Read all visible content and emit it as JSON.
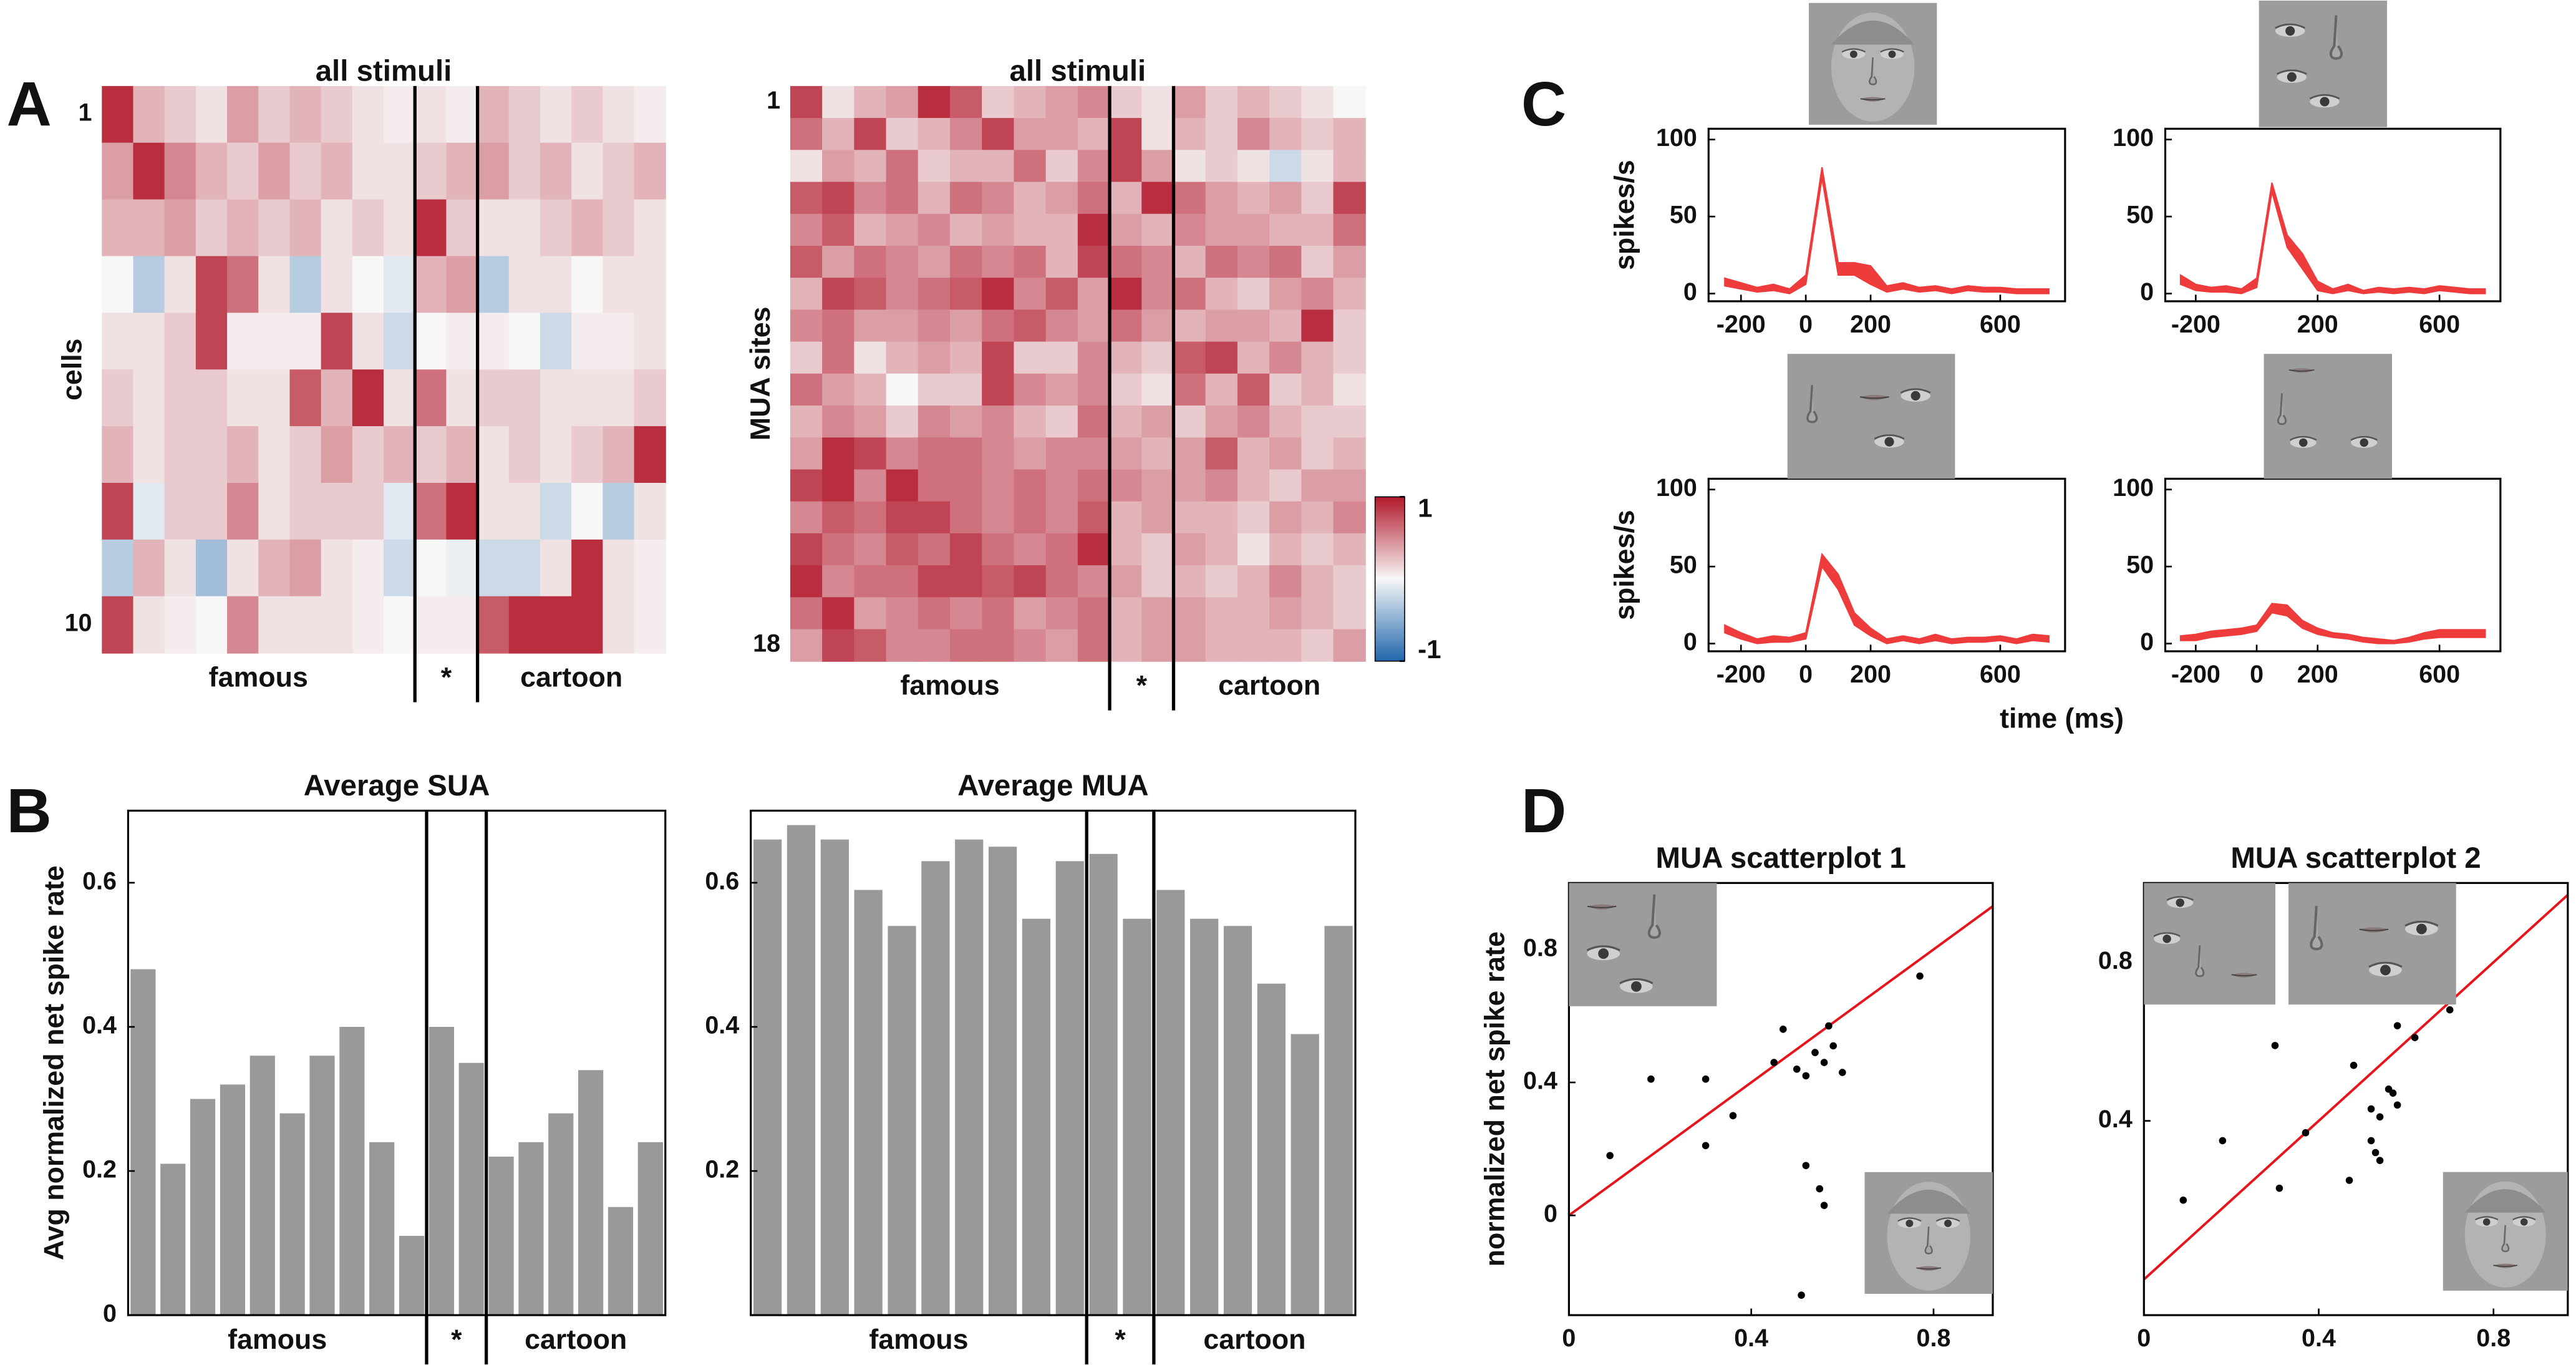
{
  "panel_labels": [
    "A",
    "B",
    "C",
    "D"
  ],
  "shared_labels": {
    "time_axis": "time (ms)"
  },
  "chart_data": [
    {
      "type": "heatmap",
      "title": "all stimuli",
      "ylabel": "cells",
      "yticks": [
        1,
        10
      ],
      "groups": [
        {
          "label": "famous",
          "count": 10
        },
        {
          "label": "*",
          "count": 2
        },
        {
          "label": "cartoon",
          "count": 6
        }
      ],
      "clim": [
        -1,
        1
      ],
      "colormap": [
        "#2166ac",
        "#f7f7f7",
        "#b2182b"
      ],
      "values": [
        [
          0.9,
          0.3,
          0.2,
          0.1,
          0.4,
          0.2,
          0.3,
          0.2,
          0.1,
          0.05,
          0.1,
          0.05,
          0.3,
          0.2,
          0.1,
          0.2,
          0.1,
          0.05
        ],
        [
          0.4,
          0.9,
          0.5,
          0.3,
          0.2,
          0.4,
          0.2,
          0.3,
          0.1,
          0.1,
          0.2,
          0.3,
          0.4,
          0.2,
          0.3,
          0.1,
          0.2,
          0.3
        ],
        [
          0.3,
          0.3,
          0.4,
          0.2,
          0.3,
          0.2,
          0.3,
          0.1,
          0.2,
          0.1,
          0.9,
          0.2,
          0.1,
          0.1,
          0.2,
          0.3,
          0.2,
          0.1
        ],
        [
          0.0,
          -0.3,
          0.1,
          0.8,
          0.6,
          0.1,
          -0.3,
          0.1,
          0.0,
          -0.1,
          0.3,
          0.4,
          -0.3,
          0.1,
          0.1,
          0.0,
          0.1,
          0.1
        ],
        [
          0.1,
          0.1,
          0.2,
          0.8,
          0.05,
          0.05,
          0.05,
          0.8,
          0.1,
          -0.2,
          0.0,
          0.05,
          0.05,
          0.0,
          -0.2,
          0.05,
          0.05,
          0.1
        ],
        [
          0.2,
          0.1,
          0.2,
          0.2,
          0.1,
          0.1,
          0.7,
          0.3,
          0.9,
          0.1,
          0.6,
          0.1,
          0.2,
          0.2,
          0.1,
          0.1,
          0.1,
          0.2
        ],
        [
          0.3,
          0.1,
          0.2,
          0.2,
          0.3,
          0.1,
          0.2,
          0.4,
          0.2,
          0.3,
          0.2,
          0.3,
          0.1,
          0.2,
          0.1,
          0.2,
          0.3,
          0.9
        ],
        [
          0.8,
          -0.1,
          0.2,
          0.2,
          0.5,
          0.1,
          0.2,
          0.2,
          0.2,
          -0.1,
          0.6,
          0.9,
          0.1,
          0.1,
          -0.2,
          0.0,
          -0.3,
          0.1
        ],
        [
          -0.3,
          0.3,
          0.1,
          -0.4,
          0.1,
          0.3,
          0.4,
          0.1,
          0.05,
          -0.2,
          0.0,
          -0.05,
          -0.2,
          -0.2,
          0.1,
          0.9,
          0.1,
          0.05
        ],
        [
          0.8,
          0.1,
          0.05,
          0.0,
          0.5,
          0.1,
          0.1,
          0.1,
          0.05,
          0.0,
          0.05,
          0.05,
          0.7,
          0.9,
          0.9,
          0.9,
          0.1,
          0.05
        ]
      ]
    },
    {
      "type": "heatmap",
      "title": "all stimuli",
      "ylabel": "MUA sites",
      "yticks": [
        1,
        18
      ],
      "groups": [
        {
          "label": "famous",
          "count": 10
        },
        {
          "label": "*",
          "count": 2
        },
        {
          "label": "cartoon",
          "count": 6
        }
      ],
      "clim": [
        -1,
        1
      ],
      "colormap": [
        "#2166ac",
        "#f7f7f7",
        "#b2182b"
      ],
      "colorbar": true,
      "cticks": [
        1,
        -1
      ],
      "values": [
        [
          0.8,
          0.1,
          0.3,
          0.4,
          0.9,
          0.7,
          0.2,
          0.3,
          0.4,
          0.5,
          0.2,
          0.1,
          0.4,
          0.2,
          0.3,
          0.2,
          0.1,
          0.0
        ],
        [
          0.6,
          0.3,
          0.8,
          0.2,
          0.3,
          0.5,
          0.8,
          0.4,
          0.4,
          0.3,
          0.8,
          0.1,
          0.3,
          0.2,
          0.5,
          0.3,
          0.2,
          0.3
        ],
        [
          0.1,
          0.4,
          0.3,
          0.6,
          0.2,
          0.3,
          0.3,
          0.6,
          0.2,
          0.5,
          0.8,
          0.4,
          0.1,
          0.2,
          0.1,
          -0.2,
          0.1,
          0.3
        ],
        [
          0.7,
          0.8,
          0.5,
          0.6,
          0.3,
          0.6,
          0.5,
          0.3,
          0.4,
          0.6,
          0.3,
          0.9,
          0.6,
          0.4,
          0.3,
          0.4,
          0.2,
          0.8
        ],
        [
          0.5,
          0.7,
          0.3,
          0.4,
          0.5,
          0.3,
          0.4,
          0.3,
          0.3,
          0.9,
          0.4,
          0.3,
          0.5,
          0.4,
          0.4,
          0.3,
          0.3,
          0.6
        ],
        [
          0.7,
          0.4,
          0.6,
          0.5,
          0.4,
          0.6,
          0.5,
          0.6,
          0.3,
          0.8,
          0.6,
          0.5,
          0.3,
          0.6,
          0.5,
          0.6,
          0.2,
          0.4
        ],
        [
          0.3,
          0.8,
          0.7,
          0.5,
          0.6,
          0.7,
          0.9,
          0.5,
          0.7,
          0.4,
          0.9,
          0.5,
          0.6,
          0.3,
          0.2,
          0.4,
          0.5,
          0.3
        ],
        [
          0.5,
          0.6,
          0.4,
          0.4,
          0.5,
          0.4,
          0.6,
          0.7,
          0.5,
          0.4,
          0.6,
          0.4,
          0.3,
          0.4,
          0.4,
          0.3,
          0.9,
          0.2
        ],
        [
          0.2,
          0.6,
          0.1,
          0.3,
          0.4,
          0.3,
          0.8,
          0.2,
          0.2,
          0.5,
          0.3,
          0.2,
          0.7,
          0.8,
          0.3,
          0.5,
          0.3,
          0.2
        ],
        [
          0.6,
          0.4,
          0.3,
          0.0,
          0.2,
          0.2,
          0.8,
          0.5,
          0.4,
          0.5,
          0.2,
          0.1,
          0.6,
          0.3,
          0.7,
          0.2,
          0.3,
          0.1
        ],
        [
          0.3,
          0.5,
          0.4,
          0.2,
          0.5,
          0.4,
          0.5,
          0.3,
          0.2,
          0.6,
          0.3,
          0.4,
          0.2,
          0.4,
          0.5,
          0.3,
          0.2,
          0.2
        ],
        [
          0.4,
          0.9,
          0.8,
          0.5,
          0.6,
          0.6,
          0.5,
          0.4,
          0.5,
          0.5,
          0.4,
          0.3,
          0.4,
          0.7,
          0.3,
          0.4,
          0.2,
          0.3
        ],
        [
          0.8,
          0.9,
          0.5,
          0.9,
          0.6,
          0.6,
          0.5,
          0.6,
          0.5,
          0.6,
          0.5,
          0.4,
          0.4,
          0.5,
          0.3,
          0.2,
          0.4,
          0.4
        ],
        [
          0.5,
          0.7,
          0.6,
          0.8,
          0.8,
          0.6,
          0.5,
          0.6,
          0.5,
          0.7,
          0.3,
          0.4,
          0.3,
          0.3,
          0.2,
          0.4,
          0.3,
          0.5
        ],
        [
          0.8,
          0.6,
          0.5,
          0.7,
          0.6,
          0.8,
          0.6,
          0.5,
          0.6,
          0.9,
          0.3,
          0.2,
          0.4,
          0.3,
          0.1,
          0.3,
          0.2,
          0.3
        ],
        [
          0.9,
          0.5,
          0.6,
          0.6,
          0.8,
          0.8,
          0.7,
          0.8,
          0.6,
          0.5,
          0.4,
          0.2,
          0.3,
          0.2,
          0.3,
          0.5,
          0.3,
          0.2
        ],
        [
          0.6,
          0.9,
          0.4,
          0.5,
          0.6,
          0.5,
          0.6,
          0.4,
          0.5,
          0.6,
          0.3,
          0.4,
          0.4,
          0.3,
          0.3,
          0.4,
          0.3,
          0.2
        ],
        [
          0.4,
          0.8,
          0.7,
          0.5,
          0.5,
          0.6,
          0.6,
          0.5,
          0.4,
          0.6,
          0.3,
          0.4,
          0.4,
          0.3,
          0.3,
          0.3,
          0.2,
          0.4
        ]
      ]
    },
    {
      "type": "bar",
      "title": "Average SUA",
      "ylabel": "Avg normalized net spike rate",
      "color": "#999999",
      "ylim": [
        0,
        0.7
      ],
      "yticks": [
        0,
        0.2,
        0.4,
        0.6
      ],
      "groups": [
        {
          "label": "famous",
          "count": 10
        },
        {
          "label": "*",
          "count": 2
        },
        {
          "label": "cartoon",
          "count": 6
        }
      ],
      "values": [
        0.48,
        0.21,
        0.3,
        0.32,
        0.36,
        0.28,
        0.36,
        0.4,
        0.24,
        0.11,
        0.4,
        0.35,
        0.22,
        0.24,
        0.28,
        0.34,
        0.15,
        0.24
      ]
    },
    {
      "type": "bar",
      "title": "Average MUA",
      "color": "#999999",
      "ylim": [
        0,
        0.7
      ],
      "yticks": [
        0.2,
        0.4,
        0.6
      ],
      "groups": [
        {
          "label": "famous",
          "count": 10
        },
        {
          "label": "*",
          "count": 2
        },
        {
          "label": "cartoon",
          "count": 6
        }
      ],
      "values": [
        0.66,
        0.68,
        0.66,
        0.59,
        0.54,
        0.63,
        0.66,
        0.65,
        0.55,
        0.63,
        0.64,
        0.55,
        0.59,
        0.55,
        0.54,
        0.46,
        0.39,
        0.54
      ]
    },
    {
      "type": "band",
      "ylabel": "spikes/s",
      "color": "#ee3b3b",
      "xlim": [
        -300,
        800
      ],
      "ylim": [
        -5,
        107
      ],
      "xticks": [
        -200,
        0,
        200,
        600
      ],
      "yticks": [
        0,
        50,
        100
      ],
      "x": [
        -250,
        -200,
        -150,
        -100,
        -50,
        0,
        50,
        100,
        150,
        200,
        250,
        300,
        350,
        400,
        450,
        500,
        550,
        600,
        650,
        700,
        750
      ],
      "upper": [
        10,
        7,
        4,
        6,
        3,
        12,
        82,
        20,
        20,
        18,
        5,
        7,
        4,
        5,
        3,
        5,
        4,
        4,
        3,
        3,
        3
      ],
      "lower": [
        5,
        3,
        1,
        2,
        0,
        6,
        75,
        12,
        12,
        6,
        1,
        3,
        1,
        2,
        0,
        2,
        1,
        1,
        0,
        0,
        0
      ]
    },
    {
      "type": "band",
      "color": "#ee3b3b",
      "xlim": [
        -300,
        800
      ],
      "ylim": [
        -5,
        107
      ],
      "xticks": [
        -200,
        200,
        600
      ],
      "yticks": [
        0,
        50,
        100
      ],
      "x": [
        -250,
        -200,
        -150,
        -100,
        -50,
        0,
        50,
        100,
        150,
        200,
        250,
        300,
        350,
        400,
        450,
        500,
        550,
        600,
        650,
        700,
        750
      ],
      "upper": [
        12,
        6,
        4,
        5,
        3,
        10,
        72,
        38,
        26,
        8,
        3,
        6,
        2,
        4,
        3,
        4,
        3,
        5,
        4,
        3,
        3
      ],
      "lower": [
        6,
        2,
        1,
        1,
        0,
        4,
        66,
        30,
        16,
        2,
        0,
        2,
        0,
        1,
        0,
        1,
        0,
        2,
        1,
        0,
        0
      ]
    },
    {
      "type": "band",
      "ylabel": "spikes/s",
      "color": "#ee3b3b",
      "xlim": [
        -300,
        800
      ],
      "ylim": [
        -5,
        107
      ],
      "xticks": [
        -200,
        0,
        200,
        600
      ],
      "yticks": [
        0,
        50,
        100
      ],
      "x": [
        -250,
        -200,
        -150,
        -100,
        -50,
        0,
        50,
        100,
        150,
        200,
        250,
        300,
        350,
        400,
        450,
        500,
        550,
        600,
        650,
        700,
        750
      ],
      "upper": [
        12,
        7,
        3,
        5,
        4,
        7,
        58,
        45,
        20,
        10,
        3,
        5,
        3,
        6,
        3,
        4,
        4,
        5,
        3,
        6,
        5
      ],
      "lower": [
        7,
        3,
        0,
        1,
        1,
        3,
        50,
        35,
        12,
        5,
        0,
        2,
        0,
        2,
        0,
        1,
        1,
        2,
        0,
        2,
        1
      ]
    },
    {
      "type": "band",
      "color": "#ee3b3b",
      "xlim": [
        -300,
        800
      ],
      "ylim": [
        -5,
        107
      ],
      "xticks": [
        -200,
        0,
        200,
        600
      ],
      "yticks": [
        0,
        50,
        100
      ],
      "x": [
        -250,
        -200,
        -150,
        -100,
        -50,
        0,
        50,
        100,
        150,
        200,
        250,
        300,
        350,
        400,
        450,
        500,
        550,
        600,
        650,
        700,
        750
      ],
      "upper": [
        5,
        6,
        8,
        9,
        10,
        12,
        26,
        25,
        15,
        10,
        7,
        6,
        4,
        3,
        2,
        4,
        7,
        9,
        9,
        9,
        9
      ],
      "lower": [
        2,
        2,
        4,
        5,
        6,
        8,
        20,
        18,
        10,
        6,
        4,
        3,
        1,
        0,
        0,
        1,
        3,
        4,
        4,
        4,
        4
      ]
    },
    {
      "type": "scatter",
      "title": "MUA scatterplot 1",
      "ylabel": "normalized net spike rate",
      "color": "#000000",
      "diagonal": true,
      "diagonal_color": "#e8141c",
      "xlim": [
        0,
        0.93
      ],
      "ylim": [
        -0.3,
        1.0
      ],
      "xticks": [
        0,
        0.4,
        0.8
      ],
      "yticks": [
        0,
        0.4,
        0.8
      ],
      "x": [
        0.09,
        0.18,
        0.3,
        0.3,
        0.36,
        0.45,
        0.47,
        0.5,
        0.52,
        0.54,
        0.56,
        0.57,
        0.58,
        0.6,
        0.52,
        0.56,
        0.55,
        0.51,
        0.77
      ],
      "y": [
        0.18,
        0.41,
        0.41,
        0.21,
        0.3,
        0.46,
        0.56,
        0.44,
        0.42,
        0.49,
        0.46,
        0.57,
        0.51,
        0.43,
        0.15,
        0.03,
        0.08,
        -0.24,
        0.72
      ]
    },
    {
      "type": "scatter",
      "title": "MUA scatterplot 2",
      "color": "#000000",
      "diagonal": true,
      "diagonal_color": "#e8141c",
      "xlim": [
        0,
        0.97
      ],
      "ylim": [
        -0.09,
        1.0
      ],
      "xticks": [
        0,
        0.4,
        0.8
      ],
      "yticks": [
        0.4,
        0.8
      ],
      "x": [
        0.09,
        0.18,
        0.3,
        0.31,
        0.37,
        0.47,
        0.48,
        0.52,
        0.52,
        0.53,
        0.54,
        0.54,
        0.56,
        0.57,
        0.58,
        0.58,
        0.62,
        0.7
      ],
      "y": [
        0.2,
        0.35,
        0.59,
        0.23,
        0.37,
        0.25,
        0.54,
        0.43,
        0.35,
        0.32,
        0.41,
        0.3,
        0.48,
        0.47,
        0.44,
        0.64,
        0.61,
        0.68
      ]
    }
  ]
}
